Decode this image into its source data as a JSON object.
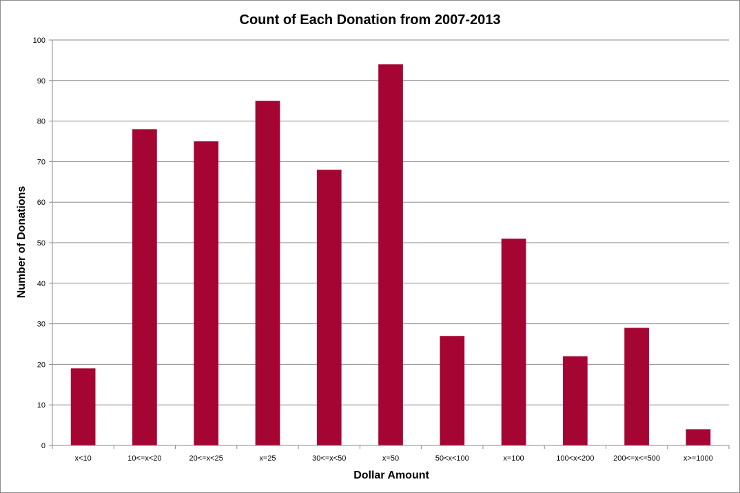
{
  "chart_data": {
    "type": "bar",
    "title": "Count of Each Donation from 2007-2013",
    "xlabel": "Dollar Amount",
    "ylabel": "Number of Donations",
    "categories": [
      "x<10",
      "10<=x<20",
      "20<=x<25",
      "x=25",
      "30<=x<50",
      "x=50",
      "50<x<100",
      "x=100",
      "100<x<200",
      "200<=x<=500",
      "x>=1000"
    ],
    "values": [
      19,
      78,
      75,
      85,
      68,
      94,
      27,
      51,
      22,
      29,
      4
    ],
    "ylim": [
      0,
      100
    ],
    "yticks": [
      0,
      10,
      20,
      30,
      40,
      50,
      60,
      70,
      80,
      90,
      100
    ],
    "grid": true,
    "legend": "none",
    "colors": {
      "bar": "#a50533",
      "gridline": "#888888",
      "axis": "#888888"
    }
  }
}
